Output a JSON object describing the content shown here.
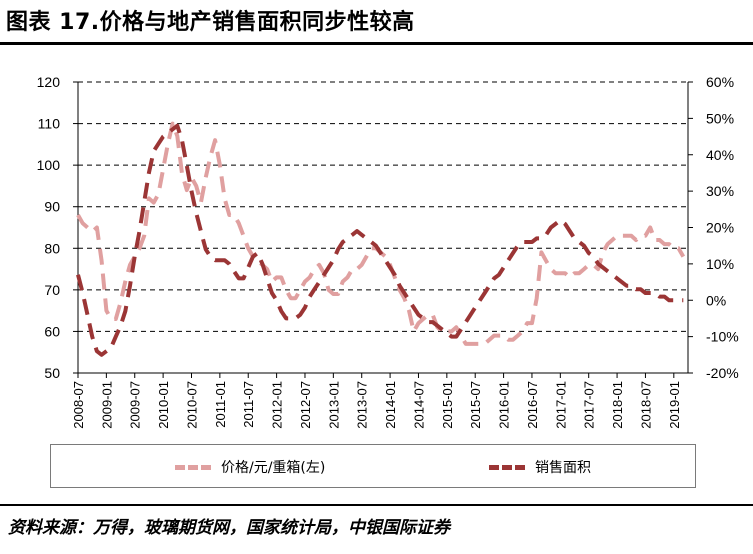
{
  "header": {
    "title": "图表 17.价格与地产销售面积同步性较高"
  },
  "footer": {
    "source": "资料来源：万得，玻璃期货网，国家统计局，中银国际证券"
  },
  "colors": {
    "price_line": "#E0A0A0",
    "sales_line": "#9B3535",
    "gridline": "#000000"
  },
  "chart_data": {
    "type": "line",
    "title": "",
    "x_tick_labels": [
      "2008-07",
      "2009-01",
      "2009-07",
      "2010-01",
      "2010-07",
      "2011-01",
      "2011-07",
      "2012-01",
      "2012-07",
      "2013-01",
      "2013-07",
      "2014-01",
      "2014-07",
      "2015-01",
      "2015-07",
      "2016-01",
      "2016-07",
      "2017-01",
      "2017-07",
      "2018-01",
      "2018-07",
      "2019-01"
    ],
    "x_start": "2008-07",
    "x_end": "2019-04",
    "y_left": {
      "ticks": [
        50,
        60,
        70,
        80,
        90,
        100,
        110,
        120
      ],
      "ylim": [
        50,
        120
      ]
    },
    "y_right": {
      "ticks": [
        "-20%",
        "-10%",
        "0%",
        "10%",
        "20%",
        "30%",
        "40%",
        "50%",
        "60%"
      ],
      "ylim": [
        -20,
        60
      ],
      "unit": "%"
    },
    "grid": "horizontal dashed",
    "legend_position": "bottom",
    "series": [
      {
        "name": "价格/元/重箱(左)",
        "axis": "left",
        "style": "dashed",
        "points": [
          [
            "2008-07",
            88
          ],
          [
            "2008-08",
            86
          ],
          [
            "2008-09",
            85
          ],
          [
            "2008-10",
            84
          ],
          [
            "2008-11",
            85
          ],
          [
            "2008-12",
            77
          ],
          [
            "2009-01",
            65
          ],
          [
            "2009-02",
            63
          ],
          [
            "2009-03",
            63
          ],
          [
            "2009-04",
            67
          ],
          [
            "2009-05",
            72
          ],
          [
            "2009-06",
            76
          ],
          [
            "2009-07",
            78
          ],
          [
            "2009-08",
            80
          ],
          [
            "2009-09",
            83
          ],
          [
            "2009-10",
            92
          ],
          [
            "2009-11",
            91
          ],
          [
            "2009-12",
            93
          ],
          [
            "2010-01",
            99
          ],
          [
            "2010-02",
            105
          ],
          [
            "2010-03",
            110
          ],
          [
            "2010-04",
            107
          ],
          [
            "2010-05",
            98
          ],
          [
            "2010-06",
            94
          ],
          [
            "2010-07",
            97
          ],
          [
            "2010-08",
            95
          ],
          [
            "2010-09",
            91
          ],
          [
            "2010-10",
            97
          ],
          [
            "2010-11",
            102
          ],
          [
            "2010-12",
            106
          ],
          [
            "2011-01",
            100
          ],
          [
            "2011-02",
            92
          ],
          [
            "2011-03",
            88
          ],
          [
            "2011-04",
            88
          ],
          [
            "2011-05",
            86
          ],
          [
            "2011-06",
            83
          ],
          [
            "2011-07",
            80
          ],
          [
            "2011-08",
            78
          ],
          [
            "2011-09",
            77
          ],
          [
            "2011-10",
            76
          ],
          [
            "2011-11",
            75
          ],
          [
            "2011-12",
            72
          ],
          [
            "2012-01",
            73
          ],
          [
            "2012-02",
            73
          ],
          [
            "2012-03",
            70
          ],
          [
            "2012-04",
            68
          ],
          [
            "2012-05",
            68
          ],
          [
            "2012-06",
            70
          ],
          [
            "2012-07",
            72
          ],
          [
            "2012-08",
            73
          ],
          [
            "2012-09",
            75
          ],
          [
            "2012-10",
            76
          ],
          [
            "2012-11",
            74
          ],
          [
            "2012-12",
            70
          ],
          [
            "2013-01",
            69
          ],
          [
            "2013-02",
            69
          ],
          [
            "2013-03",
            72
          ],
          [
            "2013-04",
            73
          ],
          [
            "2013-05",
            75
          ],
          [
            "2013-06",
            75
          ],
          [
            "2013-07",
            76
          ],
          [
            "2013-08",
            78
          ],
          [
            "2013-09",
            80
          ],
          [
            "2013-10",
            80
          ],
          [
            "2013-11",
            79
          ],
          [
            "2013-12",
            78
          ],
          [
            "2014-01",
            76
          ],
          [
            "2014-02",
            73
          ],
          [
            "2014-03",
            70
          ],
          [
            "2014-04",
            68
          ],
          [
            "2014-05",
            65
          ],
          [
            "2014-06",
            60
          ],
          [
            "2014-07",
            62
          ],
          [
            "2014-08",
            63
          ],
          [
            "2014-09",
            64
          ],
          [
            "2014-10",
            64
          ],
          [
            "2014-11",
            61
          ],
          [
            "2014-12",
            60
          ],
          [
            "2015-01",
            60
          ],
          [
            "2015-02",
            60
          ],
          [
            "2015-03",
            61
          ],
          [
            "2015-04",
            59
          ],
          [
            "2015-05",
            57
          ],
          [
            "2015-06",
            57
          ],
          [
            "2015-07",
            57
          ],
          [
            "2015-08",
            57
          ],
          [
            "2015-09",
            57
          ],
          [
            "2015-10",
            58
          ],
          [
            "2015-11",
            59
          ],
          [
            "2015-12",
            59
          ],
          [
            "2016-01",
            59
          ],
          [
            "2016-02",
            58
          ],
          [
            "2016-03",
            58
          ],
          [
            "2016-04",
            59
          ],
          [
            "2016-05",
            60
          ],
          [
            "2016-06",
            62
          ],
          [
            "2016-07",
            62
          ],
          [
            "2016-08",
            68
          ],
          [
            "2016-09",
            79
          ],
          [
            "2016-10",
            77
          ],
          [
            "2016-11",
            75
          ],
          [
            "2016-12",
            74
          ],
          [
            "2017-01",
            74
          ],
          [
            "2017-02",
            74
          ],
          [
            "2017-03",
            73
          ],
          [
            "2017-04",
            74
          ],
          [
            "2017-05",
            74
          ],
          [
            "2017-06",
            75
          ],
          [
            "2017-07",
            76
          ],
          [
            "2017-08",
            76
          ],
          [
            "2017-09",
            75
          ],
          [
            "2017-10",
            79
          ],
          [
            "2017-11",
            81
          ],
          [
            "2017-12",
            82
          ],
          [
            "2018-01",
            83
          ],
          [
            "2018-02",
            83
          ],
          [
            "2018-03",
            83
          ],
          [
            "2018-04",
            83
          ],
          [
            "2018-05",
            82
          ],
          [
            "2018-06",
            83
          ],
          [
            "2018-07",
            83
          ],
          [
            "2018-08",
            85
          ],
          [
            "2018-09",
            82
          ],
          [
            "2018-10",
            82
          ],
          [
            "2018-11",
            81
          ],
          [
            "2018-12",
            81
          ],
          [
            "2019-01",
            80
          ],
          [
            "2019-02",
            80
          ],
          [
            "2019-03",
            78
          ]
        ]
      },
      {
        "name": "销售面积",
        "axis": "right",
        "style": "dashed",
        "points": [
          [
            "2008-07",
            7
          ],
          [
            "2008-08",
            2
          ],
          [
            "2008-09",
            -4
          ],
          [
            "2008-10",
            -10
          ],
          [
            "2008-11",
            -14
          ],
          [
            "2008-12",
            -15
          ],
          [
            "2009-01",
            -14
          ],
          [
            "2009-02",
            -13
          ],
          [
            "2009-03",
            -10
          ],
          [
            "2009-04",
            -7
          ],
          [
            "2009-05",
            -3
          ],
          [
            "2009-06",
            4
          ],
          [
            "2009-07",
            12
          ],
          [
            "2009-08",
            19
          ],
          [
            "2009-09",
            27
          ],
          [
            "2009-10",
            35
          ],
          [
            "2009-11",
            41
          ],
          [
            "2009-12",
            43
          ],
          [
            "2010-01",
            45
          ],
          [
            "2010-02",
            46
          ],
          [
            "2010-03",
            47
          ],
          [
            "2010-04",
            48
          ],
          [
            "2010-05",
            44
          ],
          [
            "2010-06",
            37
          ],
          [
            "2010-07",
            30
          ],
          [
            "2010-08",
            24
          ],
          [
            "2010-09",
            19
          ],
          [
            "2010-10",
            14
          ],
          [
            "2010-11",
            12
          ],
          [
            "2010-12",
            11
          ],
          [
            "2011-01",
            11
          ],
          [
            "2011-02",
            11
          ],
          [
            "2011-03",
            10
          ],
          [
            "2011-04",
            8
          ],
          [
            "2011-05",
            6
          ],
          [
            "2011-06",
            6
          ],
          [
            "2011-07",
            9
          ],
          [
            "2011-08",
            12
          ],
          [
            "2011-09",
            13
          ],
          [
            "2011-10",
            10
          ],
          [
            "2011-11",
            6
          ],
          [
            "2011-12",
            2
          ],
          [
            "2012-01",
            0
          ],
          [
            "2012-02",
            -3
          ],
          [
            "2012-03",
            -5
          ],
          [
            "2012-04",
            -5
          ],
          [
            "2012-05",
            -5
          ],
          [
            "2012-06",
            -4
          ],
          [
            "2012-07",
            -2
          ],
          [
            "2012-08",
            1
          ],
          [
            "2012-09",
            3
          ],
          [
            "2012-10",
            5
          ],
          [
            "2012-11",
            7
          ],
          [
            "2012-12",
            9
          ],
          [
            "2013-01",
            11
          ],
          [
            "2013-02",
            14
          ],
          [
            "2013-03",
            16
          ],
          [
            "2013-04",
            17
          ],
          [
            "2013-05",
            18
          ],
          [
            "2013-06",
            19
          ],
          [
            "2013-07",
            18
          ],
          [
            "2013-08",
            17
          ],
          [
            "2013-09",
            16
          ],
          [
            "2013-10",
            15
          ],
          [
            "2013-11",
            13
          ],
          [
            "2013-12",
            11
          ],
          [
            "2014-01",
            9
          ],
          [
            "2014-02",
            7
          ],
          [
            "2014-03",
            4
          ],
          [
            "2014-04",
            2
          ],
          [
            "2014-05",
            0
          ],
          [
            "2014-06",
            -2
          ],
          [
            "2014-07",
            -4
          ],
          [
            "2014-08",
            -5
          ],
          [
            "2014-09",
            -6
          ],
          [
            "2014-10",
            -6
          ],
          [
            "2014-11",
            -7
          ],
          [
            "2014-12",
            -8
          ],
          [
            "2015-01",
            -9
          ],
          [
            "2015-02",
            -10
          ],
          [
            "2015-03",
            -10
          ],
          [
            "2015-04",
            -8
          ],
          [
            "2015-05",
            -6
          ],
          [
            "2015-06",
            -4
          ],
          [
            "2015-07",
            -2
          ],
          [
            "2015-08",
            0
          ],
          [
            "2015-09",
            2
          ],
          [
            "2015-10",
            4
          ],
          [
            "2015-11",
            6
          ],
          [
            "2015-12",
            7
          ],
          [
            "2016-01",
            9
          ],
          [
            "2016-02",
            11
          ],
          [
            "2016-03",
            13
          ],
          [
            "2016-04",
            15
          ],
          [
            "2016-05",
            16
          ],
          [
            "2016-06",
            16
          ],
          [
            "2016-07",
            16
          ],
          [
            "2016-08",
            17
          ],
          [
            "2016-09",
            17
          ],
          [
            "2016-10",
            18
          ],
          [
            "2016-11",
            20
          ],
          [
            "2016-12",
            21
          ],
          [
            "2017-01",
            22
          ],
          [
            "2017-02",
            21
          ],
          [
            "2017-03",
            19
          ],
          [
            "2017-04",
            17
          ],
          [
            "2017-05",
            16
          ],
          [
            "2017-06",
            15
          ],
          [
            "2017-07",
            13
          ],
          [
            "2017-08",
            12
          ],
          [
            "2017-09",
            10
          ],
          [
            "2017-10",
            9
          ],
          [
            "2017-11",
            8
          ],
          [
            "2017-12",
            7
          ],
          [
            "2018-01",
            6
          ],
          [
            "2018-02",
            5
          ],
          [
            "2018-03",
            4
          ],
          [
            "2018-04",
            4
          ],
          [
            "2018-05",
            3
          ],
          [
            "2018-06",
            3
          ],
          [
            "2018-07",
            2
          ],
          [
            "2018-08",
            2
          ],
          [
            "2018-09",
            2
          ],
          [
            "2018-10",
            1
          ],
          [
            "2018-11",
            1
          ],
          [
            "2018-12",
            0
          ],
          [
            "2019-01",
            0
          ],
          [
            "2019-02",
            0
          ],
          [
            "2019-03",
            0
          ]
        ]
      }
    ]
  }
}
